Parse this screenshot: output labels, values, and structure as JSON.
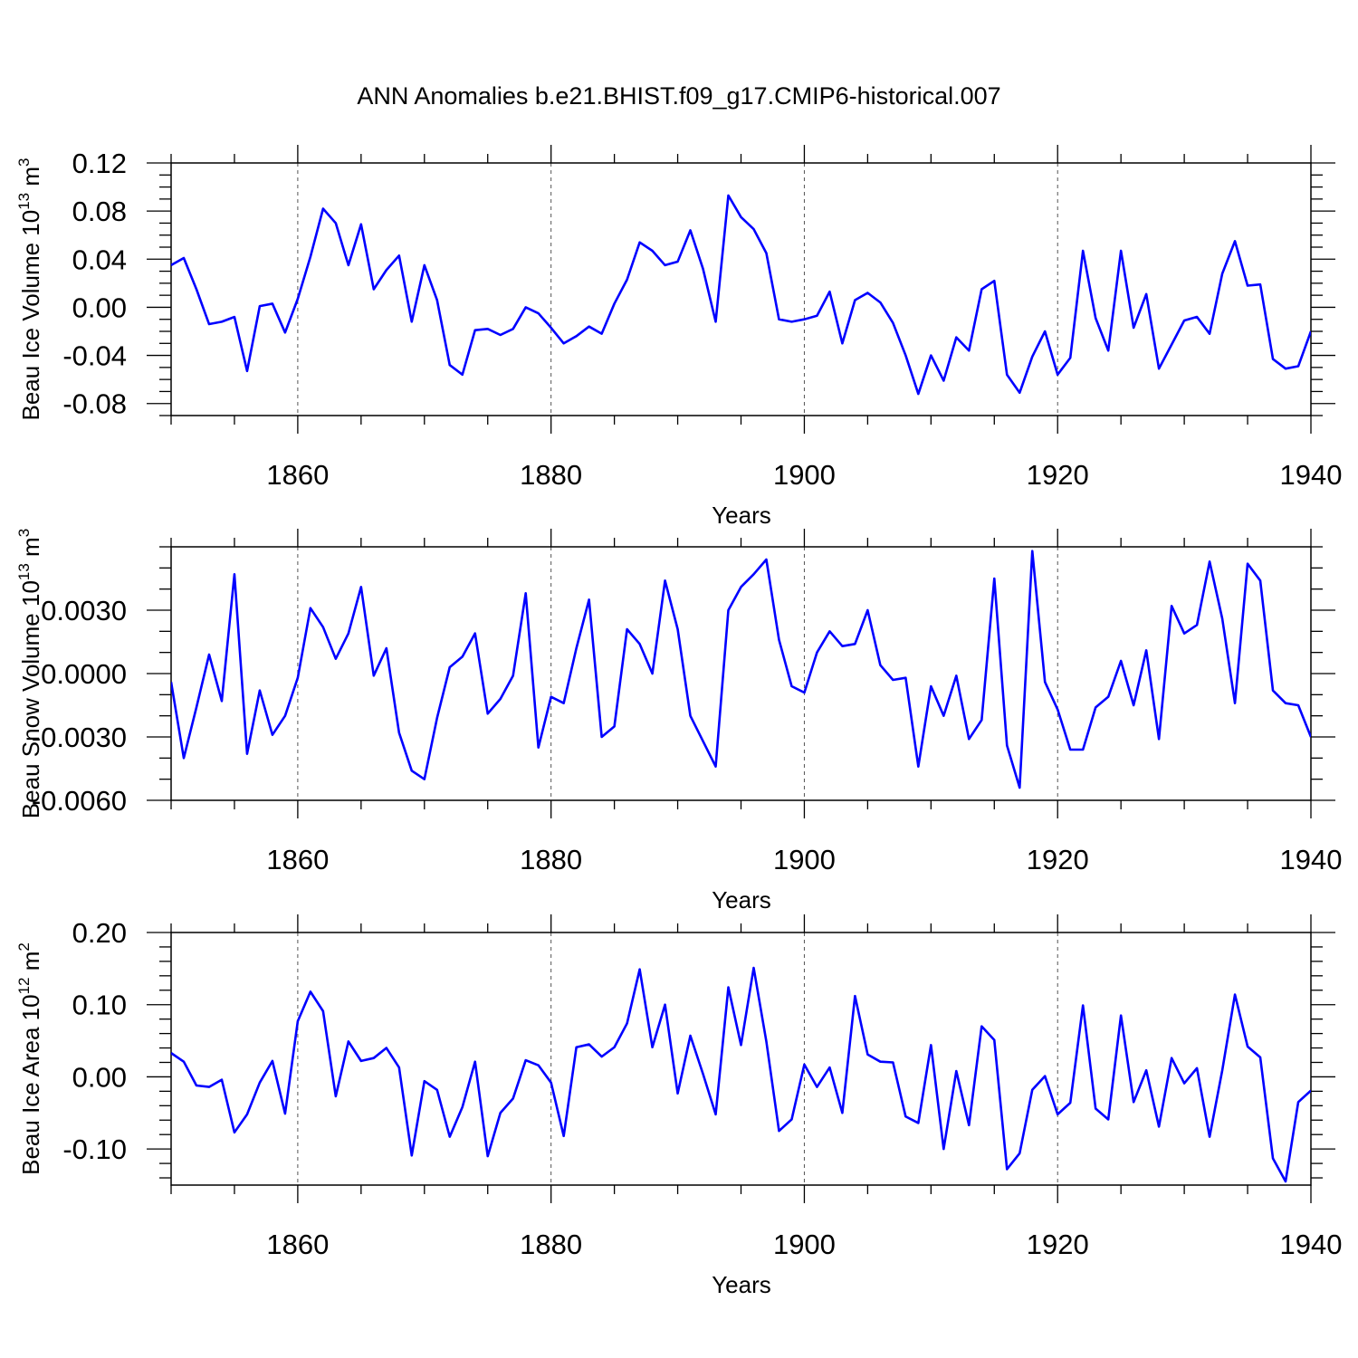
{
  "figure": {
    "title": "ANN Anomalies b.e21.BHIST.f09_g17.CMIP6-historical.007"
  },
  "chart_data": [
    {
      "type": "line",
      "name": "ice-volume",
      "title": "ANN Anomalies b.e21.BHIST.f09_g17.CMIP6-historical.007",
      "xlabel": "Years",
      "ylabel": {
        "main": "Beau Ice Volume 10",
        "exp": "13",
        "unit": " m",
        "unit_exp": "3"
      },
      "xlim": [
        1850,
        1940
      ],
      "ylim": [
        -0.09,
        0.12
      ],
      "xticks": [
        1860,
        1880,
        1900,
        1920,
        1940
      ],
      "yticks": [
        -0.08,
        -0.04,
        0.0,
        0.04,
        0.08,
        0.12
      ],
      "ytick_labels": [
        "-0.08",
        "-0.04",
        "0.00",
        "0.04",
        "0.08",
        "0.12"
      ],
      "yminor_step": 0.01,
      "color": "#0000ff",
      "x_start": 1850,
      "values": [
        0.035,
        0.041,
        0.015,
        -0.014,
        -0.012,
        -0.008,
        -0.053,
        0.001,
        0.003,
        -0.021,
        0.007,
        0.042,
        0.082,
        0.07,
        0.035,
        0.069,
        0.015,
        0.031,
        0.043,
        -0.012,
        0.035,
        0.006,
        -0.048,
        -0.056,
        -0.019,
        -0.018,
        -0.023,
        -0.018,
        0.0,
        -0.005,
        -0.017,
        -0.03,
        -0.024,
        -0.016,
        -0.022,
        0.003,
        0.023,
        0.054,
        0.047,
        0.035,
        0.038,
        0.064,
        0.032,
        -0.012,
        0.093,
        0.075,
        0.065,
        0.045,
        -0.01,
        -0.012,
        -0.01,
        -0.007,
        0.013,
        -0.03,
        0.006,
        0.012,
        0.004,
        -0.013,
        -0.04,
        -0.072,
        -0.04,
        -0.061,
        -0.025,
        -0.036,
        0.015,
        0.022,
        -0.056,
        -0.071,
        -0.041,
        -0.02,
        -0.056,
        -0.042,
        0.047,
        -0.009,
        -0.036,
        0.047,
        -0.017,
        0.011,
        -0.051,
        -0.031,
        -0.011,
        -0.008,
        -0.022,
        0.028,
        0.055,
        0.018,
        0.019,
        -0.043,
        -0.051,
        -0.049,
        -0.02
      ]
    },
    {
      "type": "line",
      "name": "snow-volume",
      "xlabel": "Years",
      "ylabel": {
        "main": "Beau Snow Volume 10",
        "exp": "13",
        "unit": " m",
        "unit_exp": "3"
      },
      "xlim": [
        1850,
        1940
      ],
      "ylim": [
        -0.006,
        0.006
      ],
      "xticks": [
        1860,
        1880,
        1900,
        1920,
        1940
      ],
      "yticks": [
        -0.006,
        -0.003,
        0.0,
        0.003
      ],
      "ytick_labels": [
        "-0.0060",
        "-0.0030",
        "0.0000",
        "0.0030"
      ],
      "yminor_step": 0.001,
      "color": "#0000ff",
      "x_start": 1850,
      "values": [
        -0.0004,
        -0.004,
        -0.0016,
        0.0009,
        -0.0013,
        0.0047,
        -0.0038,
        -0.0008,
        -0.0029,
        -0.002,
        -0.0002,
        0.0031,
        0.0022,
        0.0007,
        0.0019,
        0.0041,
        -0.0001,
        0.0012,
        -0.0028,
        -0.0046,
        -0.005,
        -0.0021,
        0.0003,
        0.0008,
        0.0019,
        -0.0019,
        -0.0012,
        -0.0001,
        0.0038,
        -0.0035,
        -0.0011,
        -0.0014,
        0.0012,
        0.0035,
        -0.003,
        -0.0025,
        0.0021,
        0.0014,
        0.0,
        0.0044,
        0.0021,
        -0.002,
        -0.0032,
        -0.0044,
        0.003,
        0.0041,
        0.0047,
        0.0054,
        0.0016,
        -0.0006,
        -0.0009,
        0.001,
        0.002,
        0.0013,
        0.0014,
        0.003,
        0.0004,
        -0.0003,
        -0.0002,
        -0.0044,
        -0.0006,
        -0.002,
        -0.0001,
        -0.0031,
        -0.0022,
        0.0045,
        -0.0034,
        -0.0054,
        0.0058,
        -0.0004,
        -0.0017,
        -0.0036,
        -0.0036,
        -0.0016,
        -0.0011,
        0.0006,
        -0.0015,
        0.0011,
        -0.0031,
        0.0032,
        0.0019,
        0.0023,
        0.0053,
        0.0026,
        -0.0014,
        0.0052,
        0.0044,
        -0.0008,
        -0.0014,
        -0.0015,
        -0.003
      ]
    },
    {
      "type": "line",
      "name": "ice-area",
      "xlabel": "Years",
      "ylabel": {
        "main": "Beau Ice Area 10",
        "exp": "12",
        "unit": " m",
        "unit_exp": "2"
      },
      "xlim": [
        1850,
        1940
      ],
      "ylim": [
        -0.15,
        0.2
      ],
      "xticks": [
        1860,
        1880,
        1900,
        1920,
        1940
      ],
      "yticks": [
        -0.1,
        0.0,
        0.1,
        0.2
      ],
      "ytick_labels": [
        "-0.10",
        "0.00",
        "0.10",
        "0.20"
      ],
      "yminor_step": 0.02,
      "color": "#0000ff",
      "x_start": 1850,
      "values": [
        0.033,
        0.021,
        -0.012,
        -0.014,
        -0.004,
        -0.077,
        -0.052,
        -0.008,
        0.022,
        -0.051,
        0.077,
        0.118,
        0.091,
        -0.027,
        0.049,
        0.022,
        0.026,
        0.04,
        0.013,
        -0.109,
        -0.006,
        -0.018,
        -0.083,
        -0.042,
        0.021,
        -0.11,
        -0.05,
        -0.03,
        0.023,
        0.016,
        -0.008,
        -0.082,
        0.041,
        0.045,
        0.028,
        0.041,
        0.074,
        0.149,
        0.041,
        0.1,
        -0.023,
        0.057,
        0.004,
        -0.052,
        0.124,
        0.044,
        0.151,
        0.049,
        -0.075,
        -0.059,
        0.017,
        -0.014,
        0.013,
        -0.05,
        0.112,
        0.031,
        0.021,
        0.02,
        -0.055,
        -0.064,
        0.044,
        -0.1,
        0.008,
        -0.067,
        0.07,
        0.051,
        -0.128,
        -0.106,
        -0.018,
        0.001,
        -0.052,
        -0.036,
        0.099,
        -0.044,
        -0.059,
        0.085,
        -0.035,
        0.009,
        -0.069,
        0.026,
        -0.009,
        0.012,
        -0.083,
        0.009,
        0.114,
        0.042,
        0.027,
        -0.113,
        -0.145,
        -0.035,
        -0.019
      ]
    }
  ]
}
